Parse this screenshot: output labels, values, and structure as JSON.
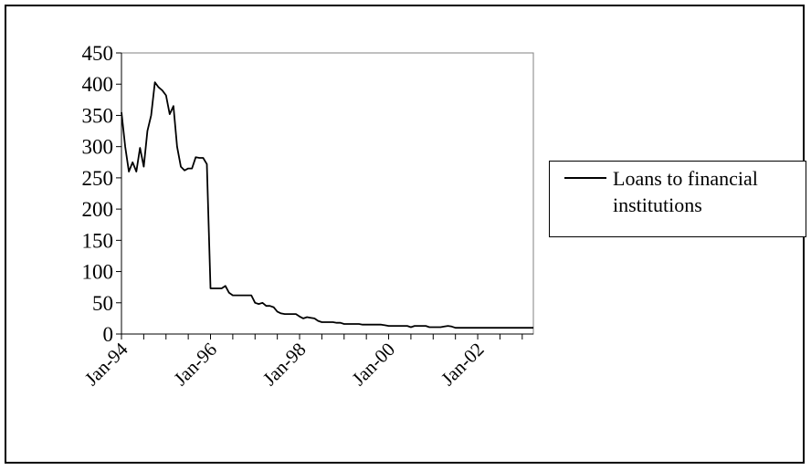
{
  "chart_data": {
    "type": "line",
    "title": "",
    "xlabel": "",
    "ylabel": "",
    "ylim": [
      0,
      450
    ],
    "yticks": [
      0,
      50,
      100,
      150,
      200,
      250,
      300,
      350,
      400,
      450
    ],
    "ytick_labels": [
      "0",
      "50",
      "100",
      "150",
      "200",
      "250",
      "300",
      "350",
      "400",
      "450"
    ],
    "xlim": [
      "1994-01",
      "2003-04"
    ],
    "xtick_labels": [
      {
        "date": "1994-01",
        "label": "Jan-94"
      },
      {
        "date": "1996-01",
        "label": "Jan-96"
      },
      {
        "date": "1998-01",
        "label": "Jan-98"
      },
      {
        "date": "2000-01",
        "label": "Jan-00"
      },
      {
        "date": "2002-01",
        "label": "Jan-02"
      }
    ],
    "grid": false,
    "legend": "right",
    "series": [
      {
        "name": "Loans to financial institutions",
        "color": "#000000",
        "points": [
          [
            "1994-01",
            355
          ],
          [
            "1994-02",
            300
          ],
          [
            "1994-03",
            260
          ],
          [
            "1994-04",
            275
          ],
          [
            "1994-05",
            260
          ],
          [
            "1994-06",
            298
          ],
          [
            "1994-07",
            268
          ],
          [
            "1994-08",
            325
          ],
          [
            "1994-09",
            350
          ],
          [
            "1994-10",
            403
          ],
          [
            "1994-11",
            395
          ],
          [
            "1994-12",
            390
          ],
          [
            "1995-01",
            382
          ],
          [
            "1995-02",
            352
          ],
          [
            "1995-03",
            365
          ],
          [
            "1995-04",
            300
          ],
          [
            "1995-05",
            268
          ],
          [
            "1995-06",
            262
          ],
          [
            "1995-07",
            265
          ],
          [
            "1995-08",
            265
          ],
          [
            "1995-09",
            283
          ],
          [
            "1995-10",
            282
          ],
          [
            "1995-11",
            282
          ],
          [
            "1995-12",
            272
          ],
          [
            "1996-01",
            73
          ],
          [
            "1996-02",
            73
          ],
          [
            "1996-03",
            73
          ],
          [
            "1996-04",
            73
          ],
          [
            "1996-05",
            77
          ],
          [
            "1996-06",
            66
          ],
          [
            "1996-07",
            62
          ],
          [
            "1996-08",
            62
          ],
          [
            "1996-09",
            62
          ],
          [
            "1996-10",
            62
          ],
          [
            "1996-11",
            62
          ],
          [
            "1996-12",
            62
          ],
          [
            "1997-01",
            50
          ],
          [
            "1997-02",
            48
          ],
          [
            "1997-03",
            50
          ],
          [
            "1997-04",
            45
          ],
          [
            "1997-05",
            45
          ],
          [
            "1997-06",
            43
          ],
          [
            "1997-07",
            36
          ],
          [
            "1997-08",
            33
          ],
          [
            "1997-09",
            32
          ],
          [
            "1997-10",
            32
          ],
          [
            "1997-11",
            32
          ],
          [
            "1997-12",
            32
          ],
          [
            "1998-01",
            28
          ],
          [
            "1998-02",
            25
          ],
          [
            "1998-03",
            27
          ],
          [
            "1998-04",
            26
          ],
          [
            "1998-05",
            25
          ],
          [
            "1998-06",
            21
          ],
          [
            "1998-07",
            19
          ],
          [
            "1998-08",
            19
          ],
          [
            "1998-09",
            19
          ],
          [
            "1998-10",
            19
          ],
          [
            "1998-11",
            18
          ],
          [
            "1998-12",
            18
          ],
          [
            "1999-01",
            16
          ],
          [
            "1999-02",
            16
          ],
          [
            "1999-03",
            16
          ],
          [
            "1999-04",
            16
          ],
          [
            "1999-05",
            16
          ],
          [
            "1999-06",
            15
          ],
          [
            "1999-07",
            15
          ],
          [
            "1999-08",
            15
          ],
          [
            "1999-09",
            15
          ],
          [
            "1999-10",
            15
          ],
          [
            "1999-11",
            15
          ],
          [
            "1999-12",
            14
          ],
          [
            "2000-01",
            13
          ],
          [
            "2000-02",
            13
          ],
          [
            "2000-03",
            13
          ],
          [
            "2000-04",
            13
          ],
          [
            "2000-05",
            13
          ],
          [
            "2000-06",
            13
          ],
          [
            "2000-07",
            11
          ],
          [
            "2000-08",
            13
          ],
          [
            "2000-09",
            13
          ],
          [
            "2000-10",
            13
          ],
          [
            "2000-11",
            13
          ],
          [
            "2000-12",
            11
          ],
          [
            "2001-01",
            11
          ],
          [
            "2001-02",
            11
          ],
          [
            "2001-03",
            11
          ],
          [
            "2001-04",
            12
          ],
          [
            "2001-05",
            13
          ],
          [
            "2001-06",
            12
          ],
          [
            "2001-07",
            10
          ],
          [
            "2001-08",
            10
          ],
          [
            "2001-09",
            10
          ],
          [
            "2001-10",
            10
          ],
          [
            "2001-11",
            10
          ],
          [
            "2001-12",
            10
          ],
          [
            "2002-01",
            10
          ],
          [
            "2002-04",
            10
          ],
          [
            "2002-07",
            10
          ],
          [
            "2002-10",
            10
          ],
          [
            "2003-01",
            10
          ],
          [
            "2003-04",
            10
          ]
        ]
      }
    ]
  }
}
